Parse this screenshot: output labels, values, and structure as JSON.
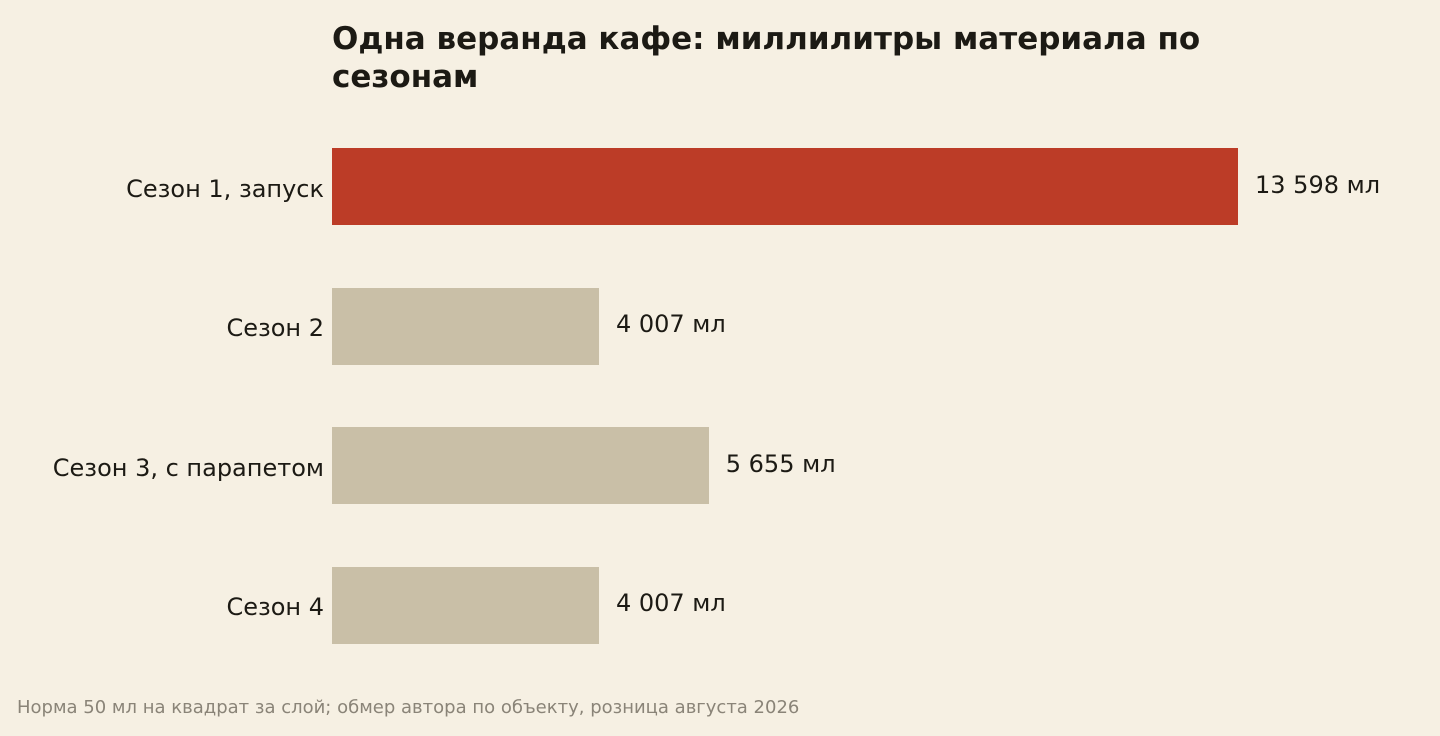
{
  "chart_data": {
    "type": "bar",
    "orientation": "horizontal",
    "title": "Одна веранда кафе: миллилитры материала по сезонам",
    "categories": [
      "Сезон 1, запуск",
      "Сезон 2",
      "Сезон 3, с парапетом",
      "Сезон 4"
    ],
    "values": [
      13598,
      4007,
      5655,
      4007
    ],
    "value_labels": [
      "13 598 мл",
      "4 007 мл",
      "5 655 мл",
      "4 007 мл"
    ],
    "unit": "мл",
    "highlight_index": 0,
    "colors": {
      "highlight": "#bc3c27",
      "default": "#c9bfa7",
      "background": "#f6f0e3",
      "text": "#1c1a14",
      "note": "#8a8478"
    },
    "xlabel": "",
    "ylabel": "",
    "grid": false,
    "axes_visible": false,
    "legend": "none"
  },
  "footer": {
    "note": "Норма 50 мл на квадрат за слой; обмер автора по объекту, розница августа 2026"
  }
}
